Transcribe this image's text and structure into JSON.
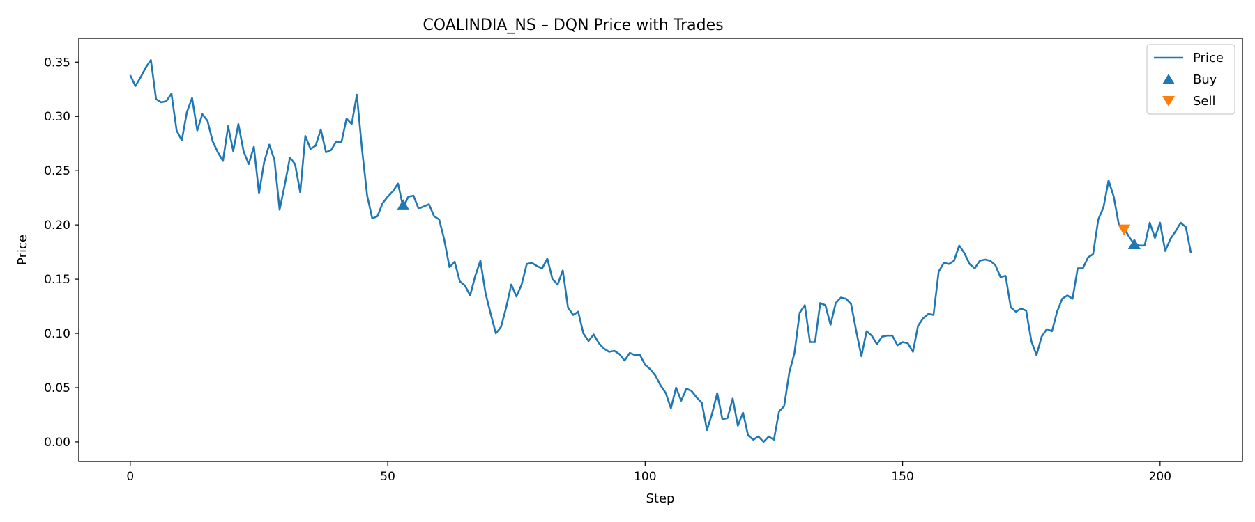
{
  "chart_data": {
    "type": "line",
    "title": "COALINDIA_NS – DQN Price with Trades",
    "xlabel": "Step",
    "ylabel": "Price",
    "xlim": [
      -10,
      216
    ],
    "ylim": [
      -0.018,
      0.372
    ],
    "xticks": [
      0,
      50,
      100,
      150,
      200
    ],
    "yticks": [
      0.0,
      0.05,
      0.1,
      0.15,
      0.2,
      0.25,
      0.3,
      0.35
    ],
    "ytick_labels": [
      "0.00",
      "0.05",
      "0.10",
      "0.15",
      "0.20",
      "0.25",
      "0.30",
      "0.35"
    ],
    "grid": false,
    "legend_position": "upper right",
    "colors": {
      "price": "#1f77b4",
      "buy": "#1f77b4",
      "sell": "#ff7f0e"
    },
    "series": [
      {
        "name": "Price",
        "x_start": 0,
        "values": [
          0.338,
          0.328,
          0.336,
          0.345,
          0.352,
          0.316,
          0.313,
          0.314,
          0.321,
          0.287,
          0.278,
          0.304,
          0.317,
          0.287,
          0.302,
          0.296,
          0.277,
          0.267,
          0.259,
          0.291,
          0.268,
          0.293,
          0.268,
          0.256,
          0.272,
          0.229,
          0.258,
          0.274,
          0.26,
          0.214,
          0.237,
          0.262,
          0.256,
          0.23,
          0.282,
          0.27,
          0.273,
          0.288,
          0.267,
          0.269,
          0.277,
          0.276,
          0.298,
          0.293,
          0.32,
          0.27,
          0.227,
          0.206,
          0.208,
          0.22,
          0.226,
          0.231,
          0.238,
          0.216,
          0.226,
          0.227,
          0.215,
          0.217,
          0.219,
          0.208,
          0.205,
          0.186,
          0.161,
          0.166,
          0.148,
          0.144,
          0.135,
          0.153,
          0.167,
          0.137,
          0.118,
          0.1,
          0.106,
          0.124,
          0.145,
          0.134,
          0.145,
          0.164,
          0.165,
          0.162,
          0.16,
          0.169,
          0.15,
          0.145,
          0.158,
          0.124,
          0.117,
          0.12,
          0.1,
          0.093,
          0.099,
          0.091,
          0.086,
          0.083,
          0.084,
          0.081,
          0.075,
          0.082,
          0.08,
          0.08,
          0.071,
          0.067,
          0.061,
          0.052,
          0.045,
          0.031,
          0.05,
          0.038,
          0.049,
          0.047,
          0.041,
          0.036,
          0.011,
          0.026,
          0.045,
          0.021,
          0.022,
          0.04,
          0.015,
          0.027,
          0.006,
          0.002,
          0.005,
          0.0,
          0.005,
          0.002,
          0.028,
          0.033,
          0.064,
          0.082,
          0.119,
          0.126,
          0.092,
          0.092,
          0.128,
          0.126,
          0.108,
          0.128,
          0.133,
          0.132,
          0.127,
          0.102,
          0.079,
          0.102,
          0.098,
          0.09,
          0.097,
          0.098,
          0.098,
          0.089,
          0.092,
          0.091,
          0.083,
          0.107,
          0.114,
          0.118,
          0.117,
          0.157,
          0.165,
          0.164,
          0.167,
          0.181,
          0.174,
          0.164,
          0.16,
          0.167,
          0.168,
          0.167,
          0.163,
          0.152,
          0.153,
          0.124,
          0.12,
          0.123,
          0.121,
          0.093,
          0.08,
          0.097,
          0.104,
          0.102,
          0.12,
          0.132,
          0.135,
          0.132,
          0.16,
          0.16,
          0.17,
          0.173,
          0.205,
          0.216,
          0.241,
          0.226,
          0.2,
          0.197,
          0.189,
          0.182,
          0.181,
          0.181,
          0.202,
          0.188,
          0.202,
          0.176,
          0.187,
          0.194,
          0.202,
          0.198,
          0.174
        ]
      }
    ],
    "trades": [
      {
        "type": "Buy",
        "x": 53,
        "y": 0.218
      },
      {
        "type": "Sell",
        "x": 193,
        "y": 0.196
      },
      {
        "type": "Buy",
        "x": 195,
        "y": 0.182
      }
    ],
    "legend": [
      {
        "label": "Price",
        "kind": "line"
      },
      {
        "label": "Buy",
        "kind": "marker-up"
      },
      {
        "label": "Sell",
        "kind": "marker-down"
      }
    ]
  }
}
